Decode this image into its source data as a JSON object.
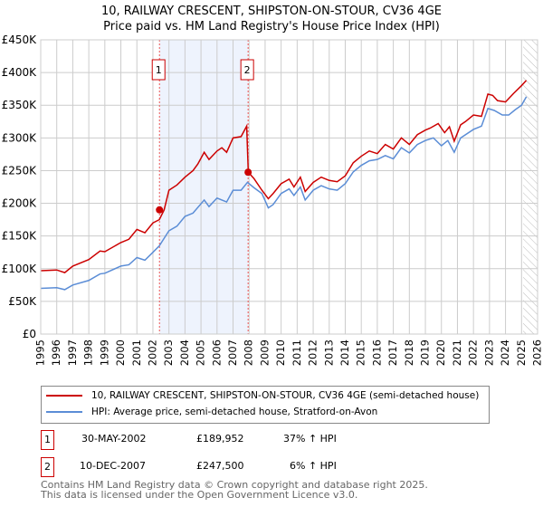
{
  "chart_data": {
    "type": "line",
    "title": "10, RAILWAY CRESCENT, SHIPSTON-ON-STOUR, CV36 4GE",
    "subtitle": "Price paid vs. HM Land Registry's House Price Index (HPI)",
    "xlim": [
      1995,
      2026
    ],
    "ylim": [
      0,
      450000
    ],
    "y_ticks": [
      {
        "v": 0,
        "l": "£0"
      },
      {
        "v": 50000,
        "l": "£50K"
      },
      {
        "v": 100000,
        "l": "£100K"
      },
      {
        "v": 150000,
        "l": "£150K"
      },
      {
        "v": 200000,
        "l": "£200K"
      },
      {
        "v": 250000,
        "l": "£250K"
      },
      {
        "v": 300000,
        "l": "£300K"
      },
      {
        "v": 350000,
        "l": "£350K"
      },
      {
        "v": 400000,
        "l": "£400K"
      },
      {
        "v": 450000,
        "l": "£450K"
      }
    ],
    "x_ticks": [
      "1995",
      "1996",
      "1997",
      "1998",
      "1999",
      "2000",
      "2001",
      "2002",
      "2003",
      "2004",
      "2005",
      "2006",
      "2007",
      "2008",
      "2009",
      "2010",
      "2011",
      "2012",
      "2013",
      "2014",
      "2015",
      "2016",
      "2017",
      "2018",
      "2019",
      "2020",
      "2021",
      "2022",
      "2023",
      "2024",
      "2025",
      "2026"
    ],
    "grid": true,
    "series": [
      {
        "name": "10, RAILWAY CRESCENT, SHIPSTON-ON-STOUR, CV36 4GE (semi-detached house)",
        "color": "#cc0000",
        "x": [
          1995,
          1996,
          1996.5,
          1997,
          1998,
          1998.7,
          1999,
          2000,
          2000.5,
          2001,
          2001.5,
          2002,
          2002.4,
          2002.7,
          2003,
          2003.5,
          2004,
          2004.5,
          2004.8,
          2005.2,
          2005.5,
          2006,
          2006.3,
          2006.6,
          2007,
          2007.5,
          2007.85,
          2007.95,
          2008.3,
          2008.8,
          2009.2,
          2009.5,
          2010,
          2010.5,
          2010.8,
          2011.2,
          2011.5,
          2012,
          2012.5,
          2013,
          2013.5,
          2014,
          2014.5,
          2015,
          2015.5,
          2016,
          2016.5,
          2017,
          2017.5,
          2018,
          2018.5,
          2019,
          2019.3,
          2019.8,
          2020.2,
          2020.5,
          2020.8,
          2021.2,
          2021.5,
          2022,
          2022.5,
          2022.9,
          2023.2,
          2023.5,
          2024,
          2024.5,
          2025,
          2025.3
        ],
        "y": [
          97000,
          98000,
          94000,
          104000,
          114000,
          127000,
          126000,
          140000,
          145000,
          160000,
          155000,
          170000,
          175000,
          189952,
          220000,
          228000,
          240000,
          250000,
          260000,
          278000,
          267000,
          280000,
          285000,
          278000,
          300000,
          302000,
          318000,
          247500,
          238000,
          220000,
          207000,
          215000,
          230000,
          237000,
          225000,
          240000,
          218000,
          232000,
          240000,
          235000,
          233000,
          242000,
          262000,
          272000,
          280000,
          276000,
          290000,
          283000,
          300000,
          290000,
          305000,
          312000,
          315000,
          322000,
          308000,
          317000,
          295000,
          320000,
          325000,
          335000,
          333000,
          367000,
          365000,
          357000,
          355000,
          368000,
          380000,
          388000
        ]
      },
      {
        "name": "HPI: Average price, semi-detached house, Stratford-on-Avon",
        "color": "#5b8dd6",
        "x": [
          1995,
          1996,
          1996.5,
          1997,
          1998,
          1998.7,
          1999,
          2000,
          2000.5,
          2001,
          2001.5,
          2002,
          2002.4,
          2003,
          2003.5,
          2004,
          2004.5,
          2005.2,
          2005.5,
          2006,
          2006.6,
          2007,
          2007.5,
          2007.9,
          2008.3,
          2008.8,
          2009.2,
          2009.5,
          2010,
          2010.5,
          2010.8,
          2011.2,
          2011.5,
          2012,
          2012.5,
          2013,
          2013.5,
          2014,
          2014.5,
          2015,
          2015.5,
          2016,
          2016.5,
          2017,
          2017.5,
          2018,
          2018.5,
          2019,
          2019.5,
          2020,
          2020.4,
          2020.8,
          2021.2,
          2022,
          2022.5,
          2022.9,
          2023.3,
          2023.8,
          2024.2,
          2024.6,
          2025,
          2025.3
        ],
        "y": [
          70000,
          71000,
          68000,
          75000,
          82000,
          92000,
          93000,
          104000,
          106000,
          117000,
          113000,
          125000,
          135000,
          158000,
          165000,
          180000,
          185000,
          205000,
          195000,
          208000,
          202000,
          220000,
          220000,
          232000,
          224000,
          215000,
          193000,
          198000,
          215000,
          222000,
          212000,
          225000,
          205000,
          220000,
          227000,
          222000,
          220000,
          230000,
          248000,
          258000,
          265000,
          267000,
          273000,
          268000,
          285000,
          277000,
          290000,
          296000,
          300000,
          288000,
          296000,
          278000,
          300000,
          313000,
          318000,
          345000,
          342000,
          335000,
          335000,
          343000,
          350000,
          363000
        ]
      }
    ],
    "annotations": [
      {
        "label": "1",
        "x": 2002.41,
        "y": 189952
      },
      {
        "label": "2",
        "x": 2007.94,
        "y": 247500
      }
    ],
    "shaded_range": [
      2002.41,
      2007.94
    ],
    "hatched_from": 2025.1
  },
  "legend": {
    "items": [
      {
        "label": "10, RAILWAY CRESCENT, SHIPSTON-ON-STOUR, CV36 4GE (semi-detached house)",
        "color": "#cc0000"
      },
      {
        "label": "HPI: Average price, semi-detached house, Stratford-on-Avon",
        "color": "#5b8dd6"
      }
    ]
  },
  "transactions": [
    {
      "num": "1",
      "date": "30-MAY-2002",
      "price": "£189,952",
      "hpi": "37% ↑ HPI"
    },
    {
      "num": "2",
      "date": "10-DEC-2007",
      "price": "£247,500",
      "hpi": "6% ↑ HPI"
    }
  ],
  "footer": {
    "line1": "Contains HM Land Registry data © Crown copyright and database right 2025.",
    "line2": "This data is licensed under the Open Government Licence v3.0."
  }
}
